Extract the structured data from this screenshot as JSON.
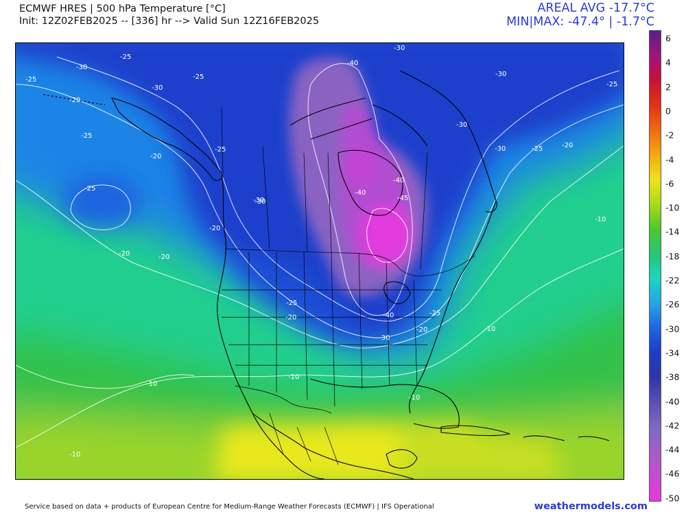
{
  "header": {
    "title": "ECMWF HRES | 500 hPa Temperature [°C]",
    "init_line": "Init: 12Z02FEB2025 -- [336] hr --> Valid Sun 12Z16FEB2025",
    "areal_avg": "AREAL AVG -17.7°C",
    "min_max": "MIN|MAX: -47.4° | -1.7°C"
  },
  "colorbar": {
    "labels": [
      "6",
      "4",
      "2",
      "0",
      "-2",
      "-4",
      "-6",
      "-10",
      "-14",
      "-18",
      "-22",
      "-26",
      "-30",
      "-34",
      "-38",
      "-40",
      "-42",
      "-44",
      "-46",
      "-50"
    ],
    "colors": [
      "#5a1f8c",
      "#a0157a",
      "#c8103a",
      "#e23214",
      "#f06a10",
      "#f3a90c",
      "#efe21a",
      "#a8dd16",
      "#4fc82c",
      "#22c875",
      "#1ad6c0",
      "#22a7e6",
      "#1f64e0",
      "#1d3ec9",
      "#2e36a6",
      "#5a4fb4",
      "#8068c0",
      "#a35ec6",
      "#c64dcf",
      "#ec35e0"
    ]
  },
  "map": {
    "contour_labels": [
      {
        "text": "-30"
      },
      {
        "text": "-25"
      },
      {
        "text": "-25"
      },
      {
        "text": "-20"
      },
      {
        "text": "-30"
      },
      {
        "text": "-25"
      },
      {
        "text": "-25"
      },
      {
        "text": "-20"
      },
      {
        "text": "-25"
      },
      {
        "text": "-25"
      },
      {
        "text": "-20"
      },
      {
        "text": "-20"
      },
      {
        "text": "-20"
      },
      {
        "text": "-30"
      },
      {
        "text": "-40"
      },
      {
        "text": "-30"
      },
      {
        "text": "-30"
      },
      {
        "text": "-25"
      },
      {
        "text": "-30"
      },
      {
        "text": "-30"
      },
      {
        "text": "-25"
      },
      {
        "text": "-20"
      },
      {
        "text": "-40"
      },
      {
        "text": "-40"
      },
      {
        "text": "-45"
      },
      {
        "text": "-10"
      },
      {
        "text": "-30"
      },
      {
        "text": "-25"
      },
      {
        "text": "-20"
      },
      {
        "text": "-40"
      },
      {
        "text": "-30"
      },
      {
        "text": "-25"
      },
      {
        "text": "-20"
      },
      {
        "text": "-10"
      },
      {
        "text": "-10"
      },
      {
        "text": "-10"
      },
      {
        "text": "-10"
      },
      {
        "text": "-10"
      }
    ]
  },
  "footer": {
    "credit": "Service based on data + products of European Centre for Medium-Range Weather Forecasts (ECMWF) | IFS Operational",
    "brand": "weathermodels.com"
  }
}
